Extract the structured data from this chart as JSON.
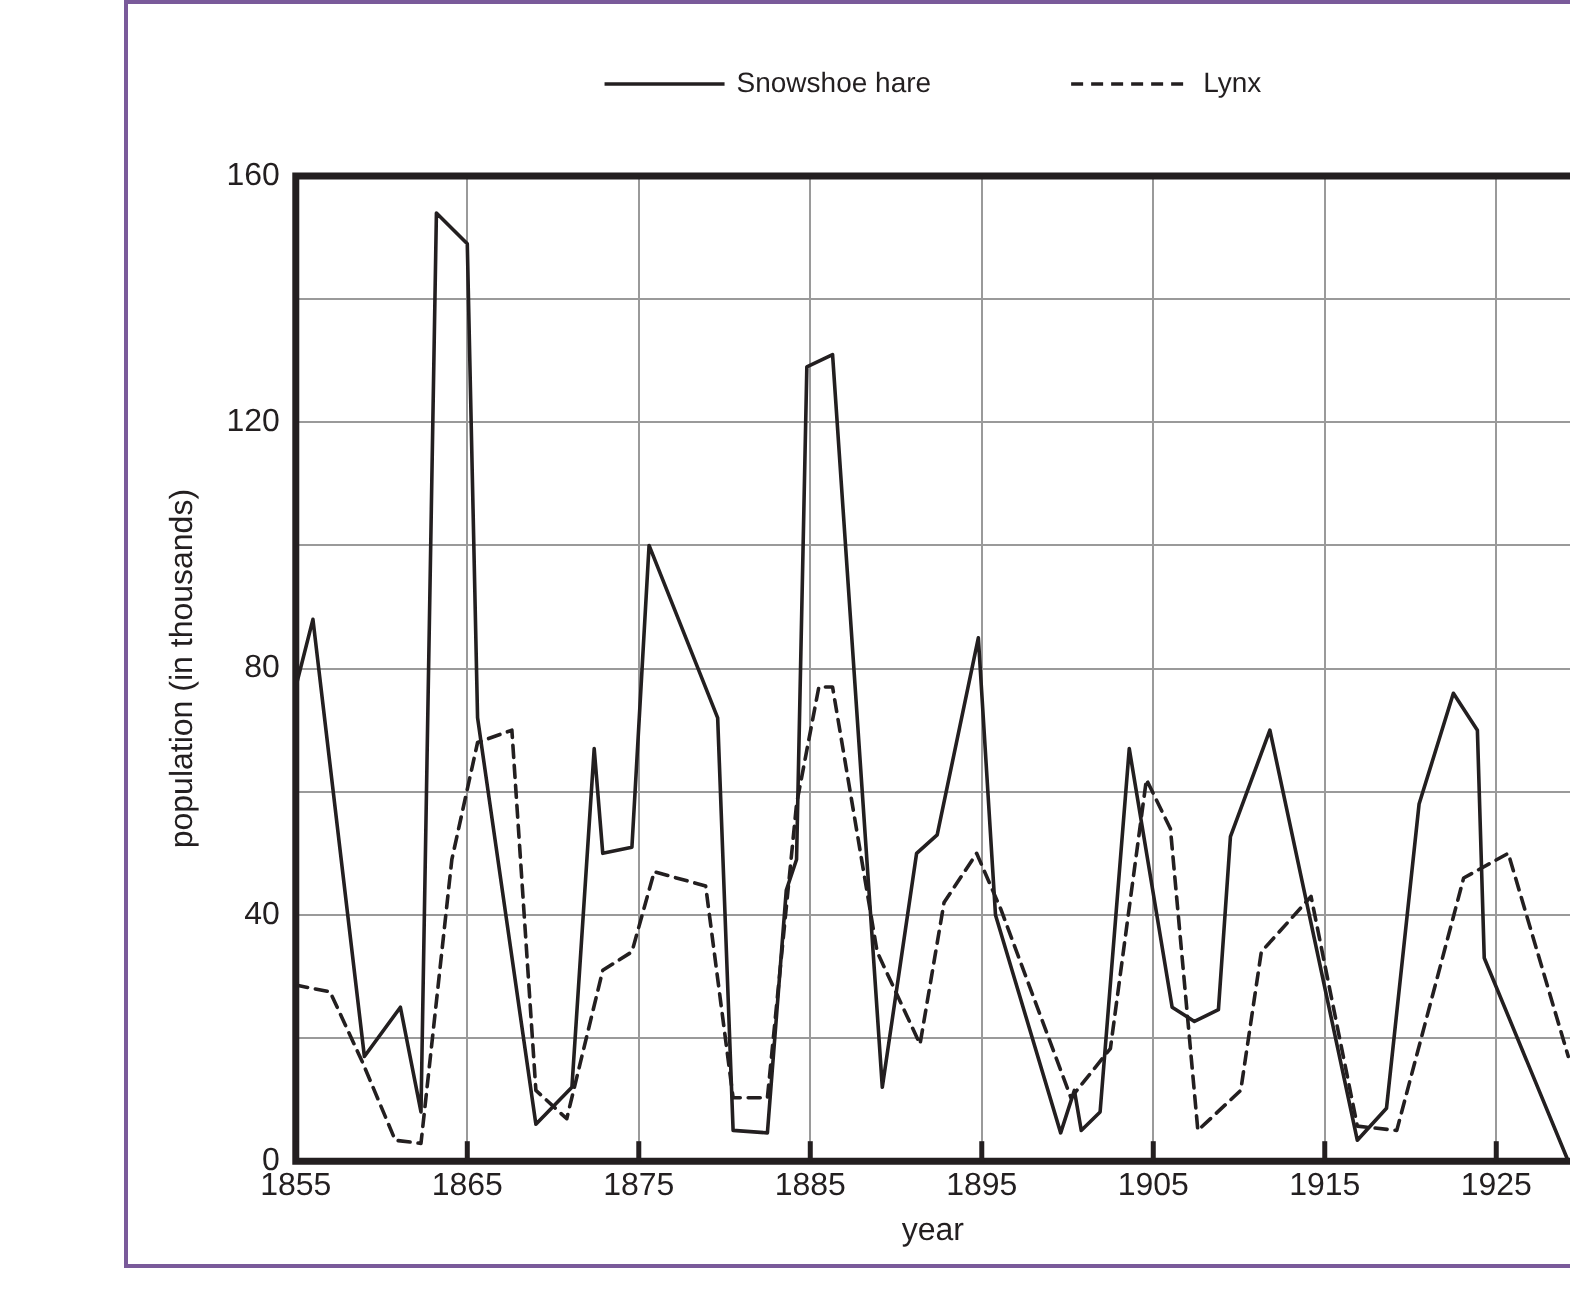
{
  "chart_data": {
    "type": "line",
    "xlabel": "year",
    "ylabel": "population (in thousands)",
    "xlim": [
      1855,
      1929.3
    ],
    "xticks": [
      1855,
      1865,
      1875,
      1885,
      1895,
      1905,
      1915,
      1925
    ],
    "ylim": [
      0,
      160
    ],
    "yticks": [
      0,
      {
        "value": 20,
        "label": null
      },
      40,
      {
        "value": 60,
        "label": null
      },
      80,
      {
        "value": 100,
        "label": null
      },
      120,
      {
        "value": 140,
        "label": null
      },
      160
    ],
    "grid": true,
    "legend": "top",
    "marker": "none",
    "series": [
      {
        "name": "Snowshoe hare",
        "color": "#231f20",
        "line_style": "solid",
        "x": [
          1855,
          1856,
          1859,
          1861.1,
          1862.3,
          1863.2,
          1865,
          1865.6,
          1869,
          1871.1,
          1872.4,
          1872.9,
          1874.6,
          1875.6,
          1879.6,
          1880.5,
          1882.5,
          1883.6,
          1884.2,
          1884.8,
          1886.3,
          1889.2,
          1891.2,
          1892.4,
          1894.8,
          1895.8,
          1899.6,
          1900.4,
          1900.8,
          1901.9,
          1903.6,
          1906.1,
          1907.4,
          1908.8,
          1909.5,
          1911.8,
          1916.9,
          1918.6,
          1920.5,
          1922.5,
          1923.9,
          1924.3,
          1929.2
        ],
        "values": [
          77,
          88,
          17,
          25,
          8,
          154,
          149,
          72,
          6,
          12,
          67,
          50,
          51,
          100,
          72,
          5,
          4.6,
          44,
          49,
          129,
          131,
          12,
          50,
          53,
          85,
          40,
          4.6,
          11.5,
          5,
          8,
          67,
          25,
          22.7,
          24.6,
          52.7,
          70,
          3.4,
          8.6,
          58,
          76,
          70,
          33,
          0
        ]
      },
      {
        "name": "Lynx",
        "color": "#231f20",
        "line_style": "dashed",
        "x": [
          1855,
          1857,
          1858.9,
          1860.8,
          1862.3,
          1864.1,
          1865.6,
          1867.6,
          1869,
          1870.8,
          1872.9,
          1874.6,
          1875.9,
          1878.9,
          1880.5,
          1882.5,
          1884.2,
          1885.5,
          1886.3,
          1888.9,
          1891.4,
          1892.8,
          1894.7,
          1896.1,
          1900.2,
          1902.5,
          1904.6,
          1906,
          1907.6,
          1910.1,
          1911.3,
          1914.2,
          1916.9,
          1919.2,
          1923.1,
          1925.7,
          1929.2
        ],
        "values": [
          28.6,
          27.5,
          16,
          3.4,
          2.9,
          49,
          68,
          70,
          11.5,
          6.9,
          31,
          34,
          47,
          44.7,
          10.3,
          10.3,
          58,
          77,
          77,
          34,
          19,
          42,
          50,
          41,
          10.3,
          18.3,
          62,
          54,
          5,
          11.5,
          34,
          43,
          5.7,
          5,
          46,
          50,
          17
        ]
      }
    ]
  }
}
